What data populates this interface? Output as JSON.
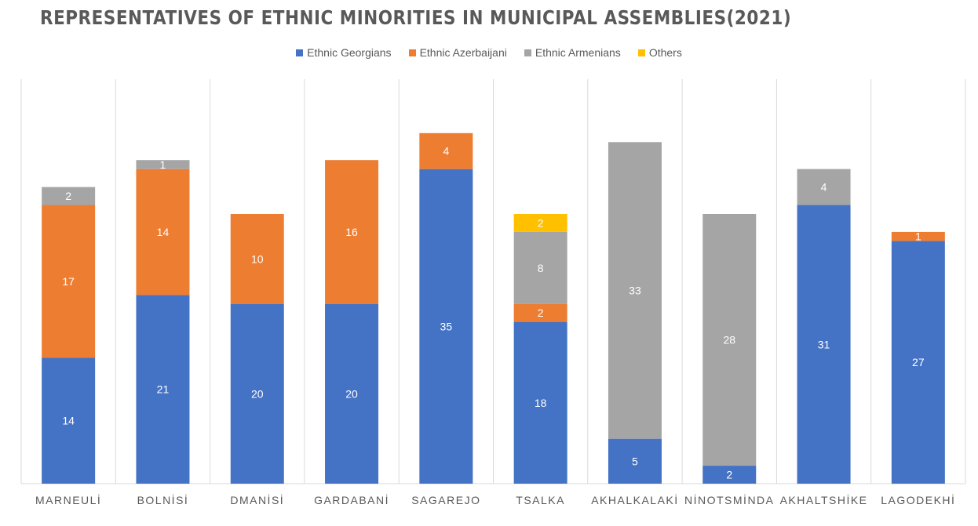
{
  "chart_data": {
    "type": "bar",
    "stacked": true,
    "title": "REPRESENTATIVES OF ETHNIC MINORITIES IN MUNICIPAL ASSEMBLIES(2021)",
    "xlabel": "",
    "ylabel": "",
    "ylim": [
      0,
      45
    ],
    "grid": "vertical category separators",
    "legend_position": "top",
    "categories": [
      "MARNEULİ",
      "BOLNİSİ",
      "DMANİSİ",
      "GARDABANİ",
      "SAGAREJO",
      "TSALKA",
      "AKHALKALAKİ",
      "NİNOTSMİNDA",
      "AKHALTSHİKE",
      "LAGODEKHİ"
    ],
    "series": [
      {
        "name": "Ethnic Georgians",
        "color": "#4472C4",
        "values": [
          14,
          21,
          20,
          20,
          35,
          18,
          5,
          2,
          31,
          27
        ]
      },
      {
        "name": "Ethnic Azerbaijani",
        "color": "#ED7D31",
        "values": [
          17,
          14,
          10,
          16,
          4,
          2,
          0,
          0,
          0,
          1
        ]
      },
      {
        "name": "Ethnic Armenians",
        "color": "#A5A5A5",
        "values": [
          2,
          1,
          0,
          0,
          0,
          8,
          33,
          28,
          4,
          0
        ]
      },
      {
        "name": "Others",
        "color": "#FFC000",
        "values": [
          0,
          0,
          0,
          0,
          0,
          2,
          0,
          0,
          0,
          0
        ]
      }
    ]
  }
}
